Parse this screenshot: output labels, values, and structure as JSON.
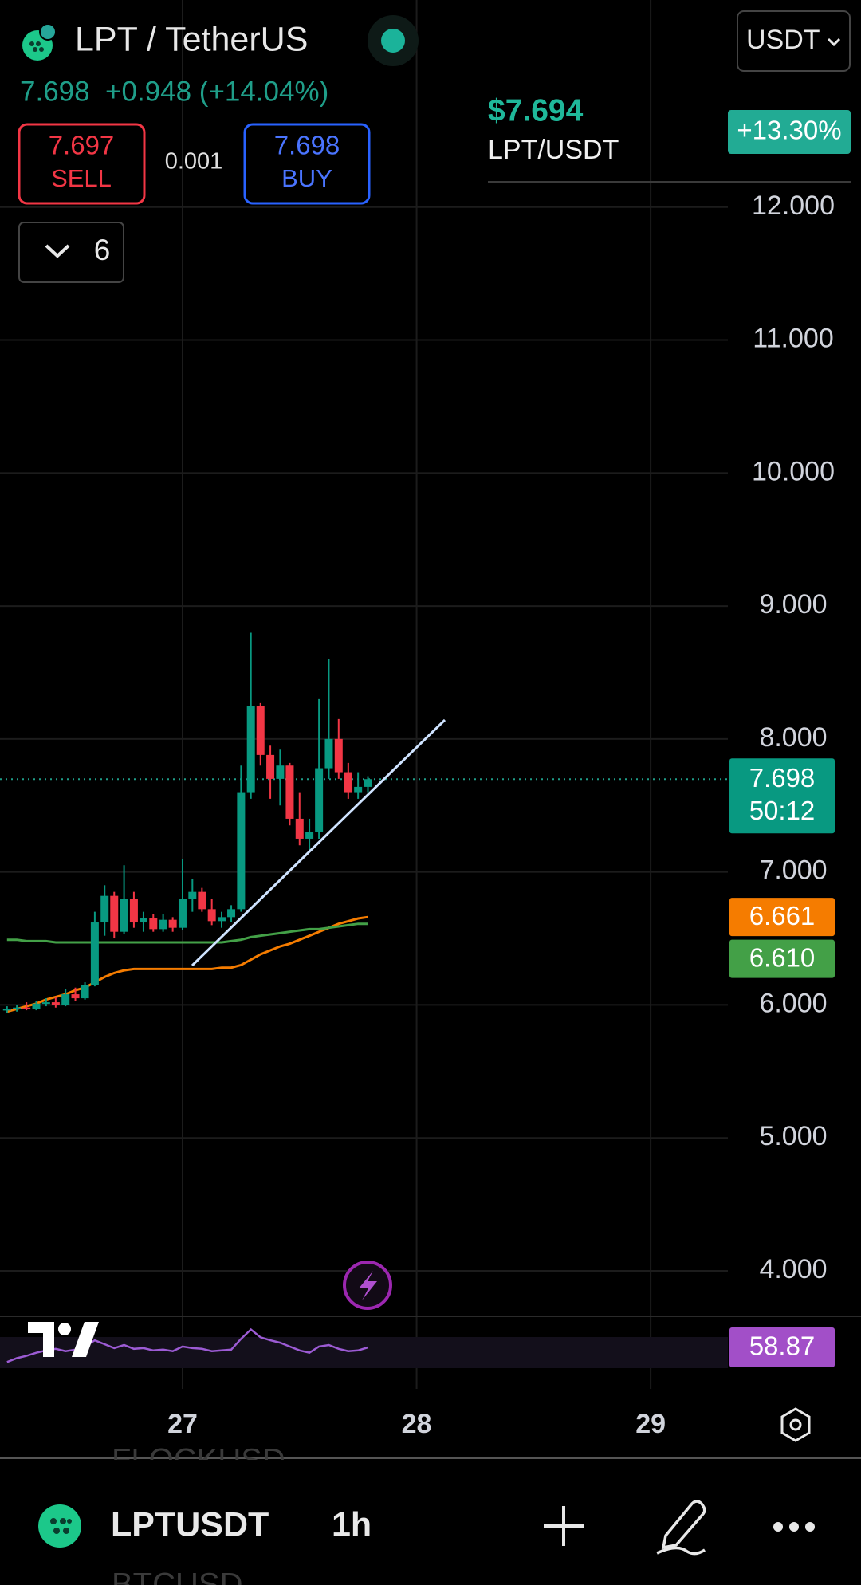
{
  "header": {
    "symbol": "LPT / TetherUS",
    "currency": "USDT",
    "last_line": "7.698  +0.948 (+14.04%)",
    "sell_price": "7.697",
    "sell": "SELL",
    "spread": "0.001",
    "buy_price": "7.698",
    "buy": "BUY",
    "indicators_count": "6"
  },
  "overlay": {
    "price": "$7.694",
    "pair": "LPT/USDT",
    "change": "+13.30%"
  },
  "chart_data": {
    "type": "candlestick",
    "up_color": "#089981",
    "down_color": "#f23645",
    "x": [
      26.25,
      26.292,
      26.333,
      26.375,
      26.417,
      26.458,
      26.5,
      26.542,
      26.583,
      26.625,
      26.667,
      26.708,
      26.75,
      26.792,
      26.833,
      26.875,
      26.917,
      26.958,
      27,
      27.042,
      27.083,
      27.125,
      27.167,
      27.208,
      27.25,
      27.292,
      27.333,
      27.375,
      27.417,
      27.458,
      27.5,
      27.542,
      27.583,
      27.625,
      27.667,
      27.708,
      27.75,
      27.792
    ],
    "open": [
      5.96,
      5.97,
      5.98,
      5.97,
      6.01,
      6.02,
      6.0,
      6.08,
      6.05,
      6.15,
      6.62,
      6.82,
      6.55,
      6.8,
      6.62,
      6.65,
      6.57,
      6.64,
      6.58,
      6.8,
      6.85,
      6.72,
      6.63,
      6.66,
      6.72,
      7.6,
      8.25,
      7.88,
      7.7,
      7.8,
      7.4,
      7.25,
      7.3,
      7.78,
      8.0,
      7.75,
      7.6,
      7.64
    ],
    "high": [
      5.99,
      6.0,
      6.02,
      6.03,
      6.05,
      6.06,
      6.12,
      6.13,
      6.17,
      6.7,
      6.9,
      6.85,
      7.05,
      6.85,
      6.7,
      6.68,
      6.68,
      6.66,
      7.1,
      6.95,
      6.88,
      6.8,
      6.7,
      6.75,
      7.8,
      8.8,
      8.27,
      7.95,
      7.92,
      7.82,
      7.6,
      7.4,
      8.3,
      8.6,
      8.15,
      7.82,
      7.75,
      7.72
    ],
    "low": [
      5.94,
      5.95,
      5.96,
      5.96,
      5.99,
      5.98,
      5.99,
      6.03,
      6.04,
      6.14,
      6.52,
      6.5,
      6.53,
      6.58,
      6.55,
      6.55,
      6.55,
      6.55,
      6.56,
      6.7,
      6.7,
      6.6,
      6.58,
      6.62,
      6.7,
      7.55,
      7.8,
      7.55,
      7.5,
      7.35,
      7.2,
      7.15,
      7.25,
      7.7,
      7.7,
      7.55,
      7.55,
      7.6
    ],
    "close": [
      5.97,
      5.98,
      5.97,
      6.01,
      6.02,
      6.0,
      6.08,
      6.05,
      6.15,
      6.62,
      6.82,
      6.55,
      6.8,
      6.62,
      6.65,
      6.57,
      6.64,
      6.58,
      6.8,
      6.85,
      6.72,
      6.63,
      6.66,
      6.72,
      7.6,
      8.25,
      7.88,
      7.7,
      7.8,
      7.4,
      7.25,
      7.3,
      7.78,
      8.0,
      7.75,
      7.6,
      7.64,
      7.698
    ],
    "countdown": "50:12",
    "ma_lines": [
      {
        "color": "#f57c00",
        "last_label": "6.661",
        "values": [
          5.95,
          5.97,
          5.99,
          6.01,
          6.04,
          6.06,
          6.08,
          6.11,
          6.13,
          6.17,
          6.21,
          6.24,
          6.26,
          6.27,
          6.27,
          6.27,
          6.27,
          6.27,
          6.27,
          6.27,
          6.27,
          6.27,
          6.28,
          6.28,
          6.3,
          6.34,
          6.38,
          6.41,
          6.44,
          6.46,
          6.49,
          6.52,
          6.55,
          6.58,
          6.61,
          6.63,
          6.65,
          6.661
        ]
      },
      {
        "color": "#43a047",
        "last_label": "6.610",
        "values": [
          6.49,
          6.49,
          6.48,
          6.48,
          6.48,
          6.47,
          6.47,
          6.47,
          6.47,
          6.47,
          6.47,
          6.47,
          6.47,
          6.47,
          6.47,
          6.47,
          6.47,
          6.47,
          6.47,
          6.47,
          6.47,
          6.47,
          6.47,
          6.48,
          6.49,
          6.51,
          6.52,
          6.53,
          6.54,
          6.55,
          6.56,
          6.57,
          6.57,
          6.58,
          6.59,
          6.6,
          6.61,
          6.61
        ]
      }
    ],
    "rsi": {
      "color": "#9c5bd4",
      "ylim": [
        28,
        98
      ],
      "values": [
        40,
        45,
        48,
        52,
        55,
        57,
        54,
        56,
        60,
        68,
        63,
        58,
        62,
        57,
        58,
        55,
        56,
        54,
        60,
        58,
        57,
        54,
        55,
        56,
        70,
        82,
        72,
        68,
        65,
        60,
        55,
        52,
        60,
        62,
        57,
        54,
        55,
        58.87
      ]
    },
    "xlim": [
      26.22,
      29.33
    ],
    "xticks": [
      27,
      28,
      29
    ],
    "ylim": [
      3.7,
      13
    ],
    "yticks": [
      {
        "value": 4,
        "label": "4.000"
      },
      {
        "value": 5,
        "label": "5.000"
      },
      {
        "value": 6,
        "label": "6.000"
      },
      {
        "value": 7,
        "label": "7.000"
      },
      {
        "value": 8,
        "label": "8.000"
      },
      {
        "value": 9,
        "label": "9.000"
      },
      {
        "value": 10,
        "label": "10.000"
      },
      {
        "value": 11,
        "label": "11.000"
      },
      {
        "value": 12,
        "label": "12.000"
      }
    ],
    "grid": true
  },
  "footer": {
    "symbol": "LPTUSDT",
    "interval": "1h",
    "watch_above": "FLOCKUSD",
    "watch_below": "BTCUSD"
  }
}
